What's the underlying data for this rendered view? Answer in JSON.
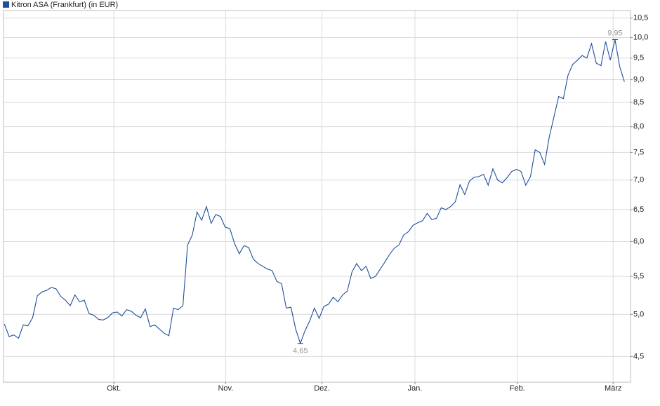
{
  "chart_data": {
    "type": "line",
    "log_scale": true,
    "grid": true,
    "legend_position": "top-left",
    "series": [
      {
        "name": "Kitron ASA (Frankfurt) (in EUR)",
        "color": "#1f4e9c",
        "values": [
          4.88,
          4.73,
          4.75,
          4.71,
          4.87,
          4.86,
          4.96,
          5.24,
          5.29,
          5.31,
          5.35,
          5.33,
          5.23,
          5.18,
          5.11,
          5.25,
          5.16,
          5.18,
          5.01,
          4.99,
          4.94,
          4.93,
          4.96,
          5.02,
          5.03,
          4.98,
          5.06,
          5.04,
          4.99,
          4.96,
          5.07,
          4.85,
          4.87,
          4.82,
          4.77,
          4.74,
          5.08,
          5.06,
          5.11,
          5.95,
          6.1,
          6.46,
          6.33,
          6.55,
          6.28,
          6.42,
          6.39,
          6.22,
          6.2,
          5.97,
          5.82,
          5.94,
          5.91,
          5.74,
          5.68,
          5.64,
          5.6,
          5.58,
          5.43,
          5.4,
          5.08,
          5.09,
          4.82,
          4.65,
          4.8,
          4.92,
          5.08,
          4.95,
          5.1,
          5.13,
          5.22,
          5.16,
          5.25,
          5.3,
          5.56,
          5.68,
          5.58,
          5.64,
          5.47,
          5.5,
          5.6,
          5.7,
          5.81,
          5.9,
          5.95,
          6.1,
          6.15,
          6.25,
          6.29,
          6.32,
          6.44,
          6.34,
          6.36,
          6.53,
          6.5,
          6.55,
          6.63,
          6.92,
          6.75,
          6.98,
          7.05,
          7.06,
          7.1,
          6.91,
          7.2,
          7.0,
          6.95,
          7.04,
          7.15,
          7.19,
          7.15,
          6.91,
          7.06,
          7.55,
          7.5,
          7.28,
          7.8,
          8.2,
          8.63,
          8.58,
          9.1,
          9.35,
          9.45,
          9.56,
          9.5,
          9.85,
          9.38,
          9.32,
          9.9,
          9.45,
          9.95,
          9.3,
          8.95
        ]
      }
    ],
    "annotations": [
      {
        "label": "4,65",
        "value": 4.65
      },
      {
        "label": "9,95",
        "value": 9.95
      }
    ],
    "xlim": [
      -0.2,
      133.3
    ],
    "xticks": [
      {
        "value": 23.3,
        "label": "Okt."
      },
      {
        "value": 47.1,
        "label": "Nov."
      },
      {
        "value": 67.6,
        "label": "Dez."
      },
      {
        "value": 87.4,
        "label": "Jan."
      },
      {
        "value": 109.2,
        "label": "Feb."
      },
      {
        "value": 129.6,
        "label": "März"
      }
    ],
    "ylim": [
      4.22,
      10.7
    ],
    "yticks": [
      {
        "value": 4.5,
        "label": "4,5"
      },
      {
        "value": 5,
        "label": "5,0"
      },
      {
        "value": 5.5,
        "label": "5,5"
      },
      {
        "value": 6,
        "label": "6,0"
      },
      {
        "value": 6.5,
        "label": "6,5"
      },
      {
        "value": 7,
        "label": "7,0"
      },
      {
        "value": 7.5,
        "label": "7,5"
      },
      {
        "value": 8,
        "label": "8,0"
      },
      {
        "value": 8.5,
        "label": "8,5"
      },
      {
        "value": 9,
        "label": "9,0"
      },
      {
        "value": 9.5,
        "label": "9,5"
      },
      {
        "value": 10,
        "label": "10,0"
      },
      {
        "value": 10.5,
        "label": "10,5"
      }
    ]
  }
}
